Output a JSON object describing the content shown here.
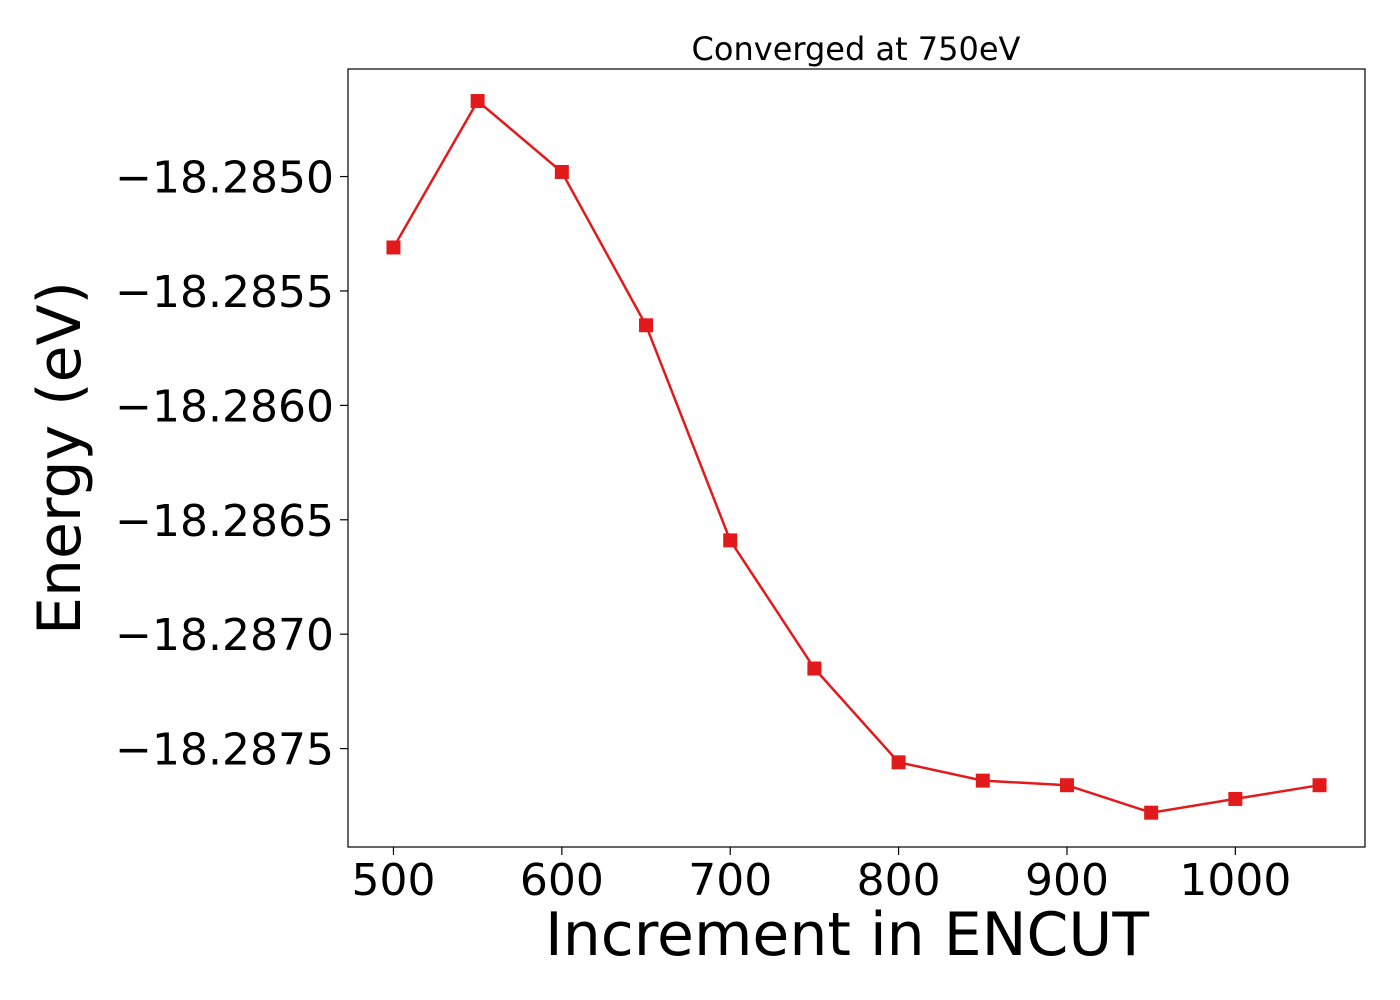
{
  "chart_data": {
    "type": "line",
    "title": "Converged at 750eV",
    "xlabel": "Increment in ENCUT",
    "ylabel": "Energy (eV)",
    "xlim": [
      473,
      1077
    ],
    "ylim": [
      -18.28793,
      -18.28453
    ],
    "x_ticks": [
      500,
      600,
      700,
      800,
      900,
      1000
    ],
    "x_tick_labels": [
      "500",
      "600",
      "700",
      "800",
      "900",
      "1000"
    ],
    "y_ticks": [
      -18.285,
      -18.2855,
      -18.286,
      -18.2865,
      -18.287,
      -18.2875
    ],
    "y_tick_labels": [
      "−18.2850",
      "−18.2855",
      "−18.2860",
      "−18.2865",
      "−18.2870",
      "−18.2875"
    ],
    "grid": false,
    "series": [
      {
        "color": "#e31a1c",
        "marker": "square",
        "x": [
          500,
          550,
          600,
          650,
          700,
          750,
          800,
          850,
          900,
          950,
          1000,
          1050
        ],
        "y": [
          -18.28531,
          -18.28467,
          -18.28498,
          -18.28565,
          -18.28659,
          -18.28715,
          -18.28756,
          -18.28764,
          -18.28766,
          -18.28778,
          -18.28772,
          -18.28766
        ]
      }
    ]
  }
}
